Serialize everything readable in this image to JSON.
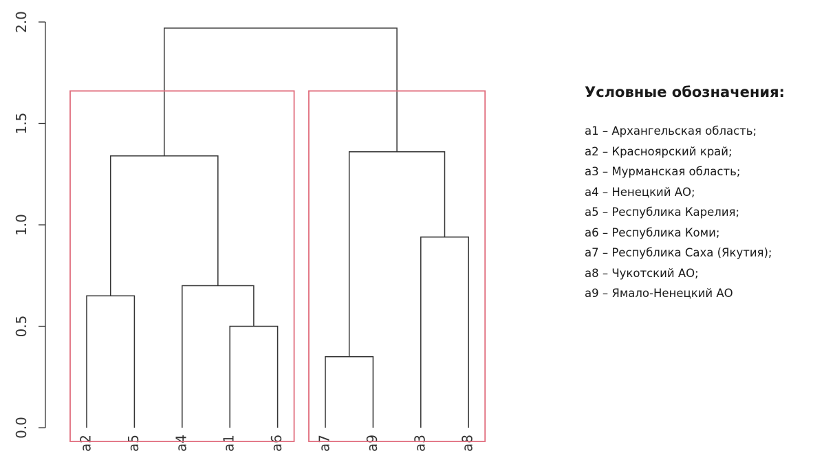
{
  "chart_data": {
    "type": "dendrogram",
    "title": "",
    "xlabel": "",
    "ylabel": "",
    "ylim": [
      0,
      2
    ],
    "yticks": [
      "0.0",
      "0.5",
      "1.0",
      "1.5",
      "2.0"
    ],
    "yticks_values": [
      0,
      0.5,
      1.0,
      1.5,
      2.0
    ],
    "leaf_order": [
      "a2",
      "a5",
      "a4",
      "a1",
      "a6",
      "a7",
      "a9",
      "a3",
      "a8"
    ],
    "merges": [
      {
        "left": "a7",
        "right": "a9",
        "height": 0.35
      },
      {
        "left": "a1",
        "right": "a6",
        "height": 0.5
      },
      {
        "left": "a2",
        "right": "a5",
        "height": 0.65
      },
      {
        "left": "a4",
        "right": "(a1,a6)",
        "height": 0.7
      },
      {
        "left": "a3",
        "right": "a8",
        "height": 0.94
      },
      {
        "left": "(a2,a5)",
        "right": "(a4,(a1,a6))",
        "height": 1.34
      },
      {
        "left": "(a7,a9)",
        "right": "(a3,a8)",
        "height": 1.36
      },
      {
        "left": "(a2,a5,a4,a1,a6)",
        "right": "(a7,a9,a3,a8)",
        "height": 1.97
      }
    ],
    "cluster_boxes": [
      {
        "leaves": [
          "a2",
          "a5",
          "a4",
          "a1",
          "a6"
        ],
        "cut_height": 1.66
      },
      {
        "leaves": [
          "a7",
          "a9",
          "a3",
          "a8"
        ],
        "cut_height": 1.66
      }
    ],
    "colors": {
      "branches": "#333333",
      "cluster_box": "#e06c7c",
      "axis": "#333333"
    }
  },
  "legend": {
    "title": "Условные обозначения:",
    "items": [
      "а1 – Архангельская область;",
      "а2 – Красноярский край;",
      "а3 – Мурманская область;",
      "а4 – Ненецкий АО;",
      "а5 – Республика Карелия;",
      "а6 – Республика Коми;",
      "а7 – Республика Саха (Якутия);",
      "а8 – Чукотский АО;",
      "а9 – Ямало-Ненецкий АО"
    ]
  }
}
